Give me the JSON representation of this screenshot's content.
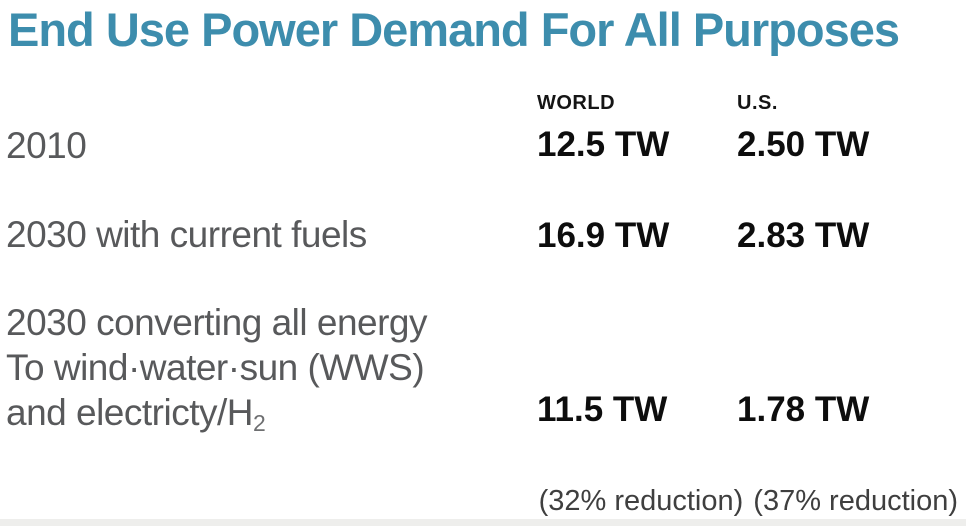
{
  "title": "End Use Power Demand For All Purposes",
  "columns": {
    "world": "WORLD",
    "us": "U.S."
  },
  "rows": [
    {
      "label": "2010",
      "world": "12.5 TW",
      "us": "2.50 TW"
    },
    {
      "label": "2030 with current fuels",
      "world": "16.9 TW",
      "us": "2.83 TW"
    },
    {
      "label_lines": [
        "2030 converting all energy",
        "To wind·water·sun (WWS)",
        "and electricty/H"
      ],
      "label_sub": "2",
      "world": "11.5 TW",
      "us": "1.78 TW"
    }
  ],
  "notes": {
    "world": "(32% reduction)",
    "us": "(37% reduction)"
  },
  "colors": {
    "title_accent": "#3d8dad",
    "label_gray": "#58595b",
    "value_black": "#0d0d0d",
    "note_gray": "#3f3f3f",
    "bottom_strip": "#eeeeec",
    "background": "#ffffff"
  },
  "chart_data": {
    "type": "table",
    "title": "End Use Power Demand For All Purposes",
    "unit": "TW",
    "categories": [
      "2010",
      "2030 with current fuels",
      "2030 converting all energy To wind·water·sun (WWS) and electricty/H2"
    ],
    "series": [
      {
        "name": "WORLD",
        "values": [
          12.5,
          16.9,
          11.5
        ],
        "reduction_note": "(32% reduction)"
      },
      {
        "name": "U.S.",
        "values": [
          2.5,
          2.83,
          1.78
        ],
        "reduction_note": "(37% reduction)"
      }
    ],
    "legend_position": "column headers",
    "grid": false
  }
}
